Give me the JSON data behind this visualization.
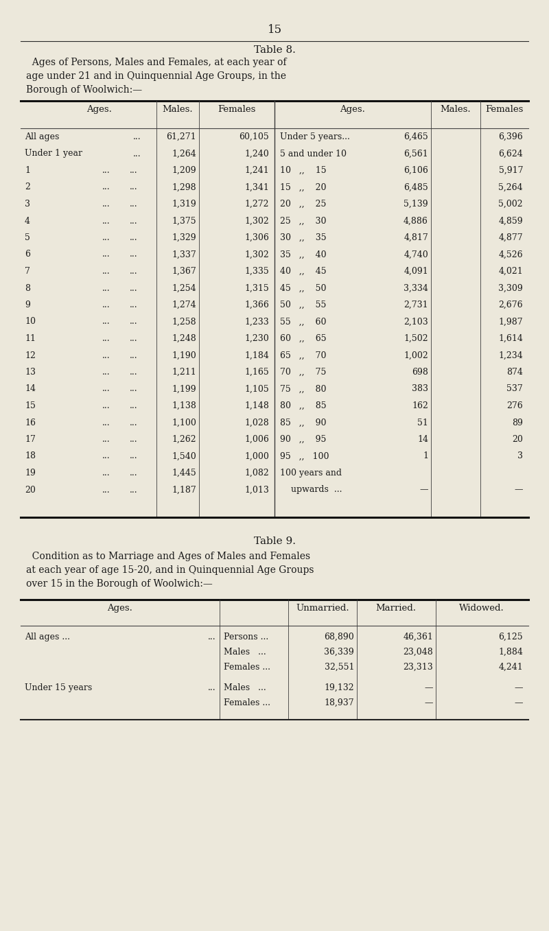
{
  "page_number": "15",
  "bg_color": "#ece8db",
  "text_color": "#1a1a1a",
  "table8_title": "Table 8.",
  "table8_subtitle_lines": [
    "  Ages of Persons, Males and Females, at each year of",
    "age under 21 and in Quinquennial Age Groups, in the",
    "Borough of Woolwich:—"
  ],
  "table8_left_data": [
    [
      "All ages",
      "...",
      "61,271",
      "60,105"
    ],
    [
      "Under 1 year",
      "...",
      "1,264",
      "1,240"
    ],
    [
      "1",
      "...",
      "1,209",
      "1,241"
    ],
    [
      "2",
      "...",
      "1,298",
      "1,341"
    ],
    [
      "3",
      "...",
      "1,319",
      "1,272"
    ],
    [
      "4",
      "...",
      "1,375",
      "1,302"
    ],
    [
      "5",
      "...",
      "1,329",
      "1,306"
    ],
    [
      "6",
      "...",
      "1,337",
      "1,302"
    ],
    [
      "7",
      "...",
      "1,367",
      "1,335"
    ],
    [
      "8",
      "...",
      "1,254",
      "1,315"
    ],
    [
      "9",
      "...",
      "1,274",
      "1,366"
    ],
    [
      "10",
      "...",
      "1,258",
      "1,233"
    ],
    [
      "11",
      "...",
      "1,248",
      "1,230"
    ],
    [
      "12",
      "...",
      "1,190",
      "1,184"
    ],
    [
      "13",
      "...",
      "1,211",
      "1,165"
    ],
    [
      "14",
      "...",
      "1,199",
      "1,105"
    ],
    [
      "15",
      "...",
      "1,138",
      "1,148"
    ],
    [
      "16",
      "...",
      "1,100",
      "1,028"
    ],
    [
      "17",
      "...",
      "1,262",
      "1,006"
    ],
    [
      "18",
      "...",
      "1,540",
      "1,000"
    ],
    [
      "19",
      "...",
      "1,445",
      "1,082"
    ],
    [
      "20",
      "...",
      "1,187",
      "1,013"
    ]
  ],
  "table8_right_data": [
    [
      "Under 5 years...",
      "6,465",
      "6,396"
    ],
    [
      "5 and under 10",
      "6,561",
      "6,624"
    ],
    [
      "10   ,,    15",
      "6,106",
      "5,917"
    ],
    [
      "15   ,,    20",
      "6,485",
      "5,264"
    ],
    [
      "20   ,,    25",
      "5,139",
      "5,002"
    ],
    [
      "25   ,,    30",
      "4,886",
      "4,859"
    ],
    [
      "30   ,,    35",
      "4,817",
      "4,877"
    ],
    [
      "35   ,,    40",
      "4,740",
      "4,526"
    ],
    [
      "40   ,,    45",
      "4,091",
      "4,021"
    ],
    [
      "45   ,,    50",
      "3,334",
      "3,309"
    ],
    [
      "50   ,,    55",
      "2,731",
      "2,676"
    ],
    [
      "55   ,,    60",
      "2,103",
      "1,987"
    ],
    [
      "60   ,,    65",
      "1,502",
      "1,614"
    ],
    [
      "65   ,,    70",
      "1,002",
      "1,234"
    ],
    [
      "70   ,,    75",
      "698",
      "874"
    ],
    [
      "75   ,,    80",
      "383",
      "537"
    ],
    [
      "80   ,,    85",
      "162",
      "276"
    ],
    [
      "85   ,,    90",
      "51",
      "89"
    ],
    [
      "90   ,,    95",
      "14",
      "20"
    ],
    [
      "95   ,,   100",
      "1",
      "3"
    ],
    [
      "100 years and",
      "",
      ""
    ],
    [
      "    upwards  ...",
      "—",
      "—"
    ]
  ],
  "table9_title": "Table 9.",
  "table9_subtitle_lines": [
    "  Condition as to Marriage and Ages of Males and Females",
    "at each year of age 15-20, and in Quinquennial Age Groups",
    "over 15 in the Borough of Woolwich:—"
  ],
  "table9_rows": [
    [
      "All ages ...",
      "...",
      "Persons ...",
      "68,890",
      "46,361",
      "6,125"
    ],
    [
      "",
      "",
      "Males   ...",
      "36,339",
      "23,048",
      "1,884"
    ],
    [
      "",
      "",
      "Females ...",
      "32,551",
      "23,313",
      "4,241"
    ],
    [
      "Under 15 years",
      "...",
      "Males   ...",
      "19,132",
      "—",
      "—"
    ],
    [
      "",
      "",
      "Females ...",
      "18,937",
      "—",
      "—"
    ]
  ]
}
